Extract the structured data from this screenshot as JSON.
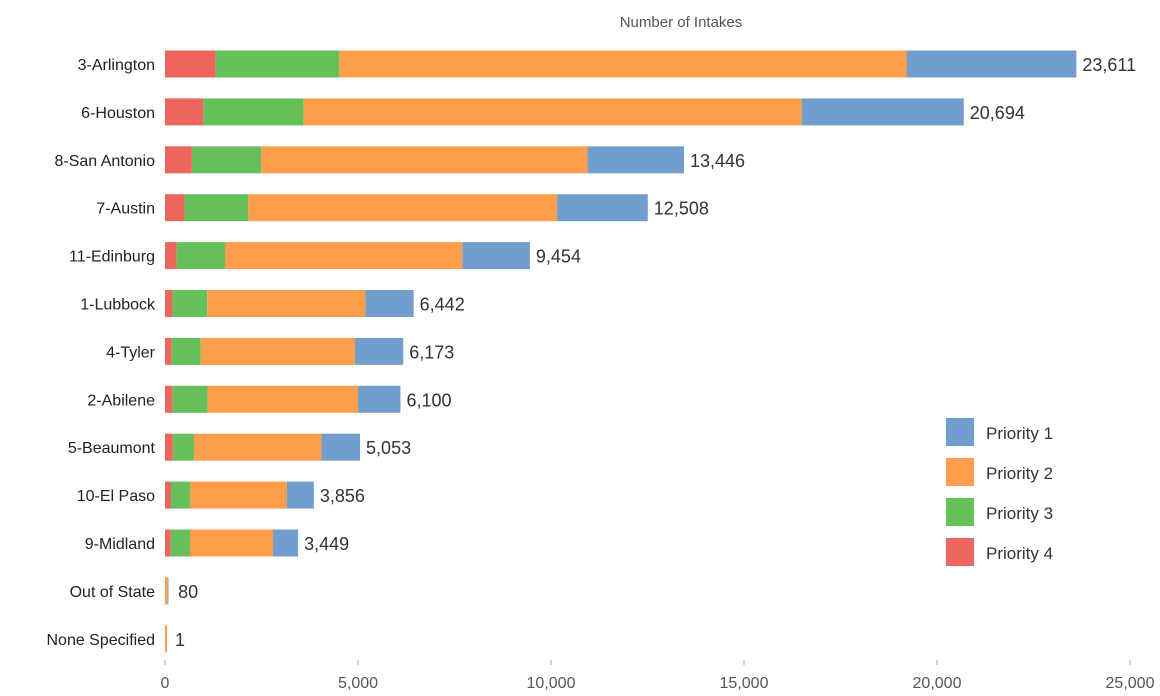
{
  "chart_data": {
    "type": "bar",
    "orientation": "horizontal",
    "stacked": true,
    "title": "",
    "xlabel": "Number of Intakes",
    "ylabel": "",
    "xlim": [
      0,
      25000
    ],
    "x_ticks": [
      0,
      5000,
      10000,
      15000,
      20000,
      25000
    ],
    "x_tick_labels": [
      "0",
      "5,000",
      "10,000",
      "15,000",
      "20,000",
      "25,000"
    ],
    "grid": false,
    "legend_position": "right",
    "categories": [
      "3-Arlington",
      "6-Houston",
      "8-San Antonio",
      "7-Austin",
      "11-Edinburg",
      "1-Lubbock",
      "4-Tyler",
      "2-Abilene",
      "5-Beaumont",
      "10-El Paso",
      "9-Midland",
      "Out of State",
      "None Specified"
    ],
    "totals": [
      23611,
      20694,
      13446,
      12508,
      9454,
      6442,
      6173,
      6100,
      5053,
      3856,
      3449,
      80,
      1
    ],
    "total_labels": [
      "23,611",
      "20,694",
      "13,446",
      "12,508",
      "9,454",
      "6,442",
      "6,173",
      "6,100",
      "5,053",
      "3,856",
      "3,449",
      "80",
      "1"
    ],
    "stack_order": [
      "Priority 4",
      "Priority 3",
      "Priority 2",
      "Priority 1"
    ],
    "series": [
      {
        "name": "Priority 1",
        "color": "#729ece",
        "values": [
          4400,
          4200,
          2500,
          2350,
          1750,
          1250,
          1250,
          1100,
          1000,
          700,
          650,
          10,
          0
        ]
      },
      {
        "name": "Priority 2",
        "color": "#ff9e4a",
        "values": [
          14700,
          12900,
          8450,
          8000,
          6150,
          4100,
          4000,
          3900,
          3300,
          2500,
          2150,
          50,
          1
        ]
      },
      {
        "name": "Priority 3",
        "color": "#67bf5c",
        "values": [
          3200,
          2600,
          1800,
          1650,
          1250,
          900,
          750,
          900,
          550,
          500,
          500,
          15,
          0
        ]
      },
      {
        "name": "Priority 4",
        "color": "#ed665d",
        "values": [
          1311,
          994,
          696,
          508,
          304,
          192,
          173,
          200,
          203,
          156,
          149,
          5,
          0
        ]
      }
    ],
    "legend_order": [
      "Priority 1",
      "Priority 2",
      "Priority 3",
      "Priority 4"
    ]
  }
}
